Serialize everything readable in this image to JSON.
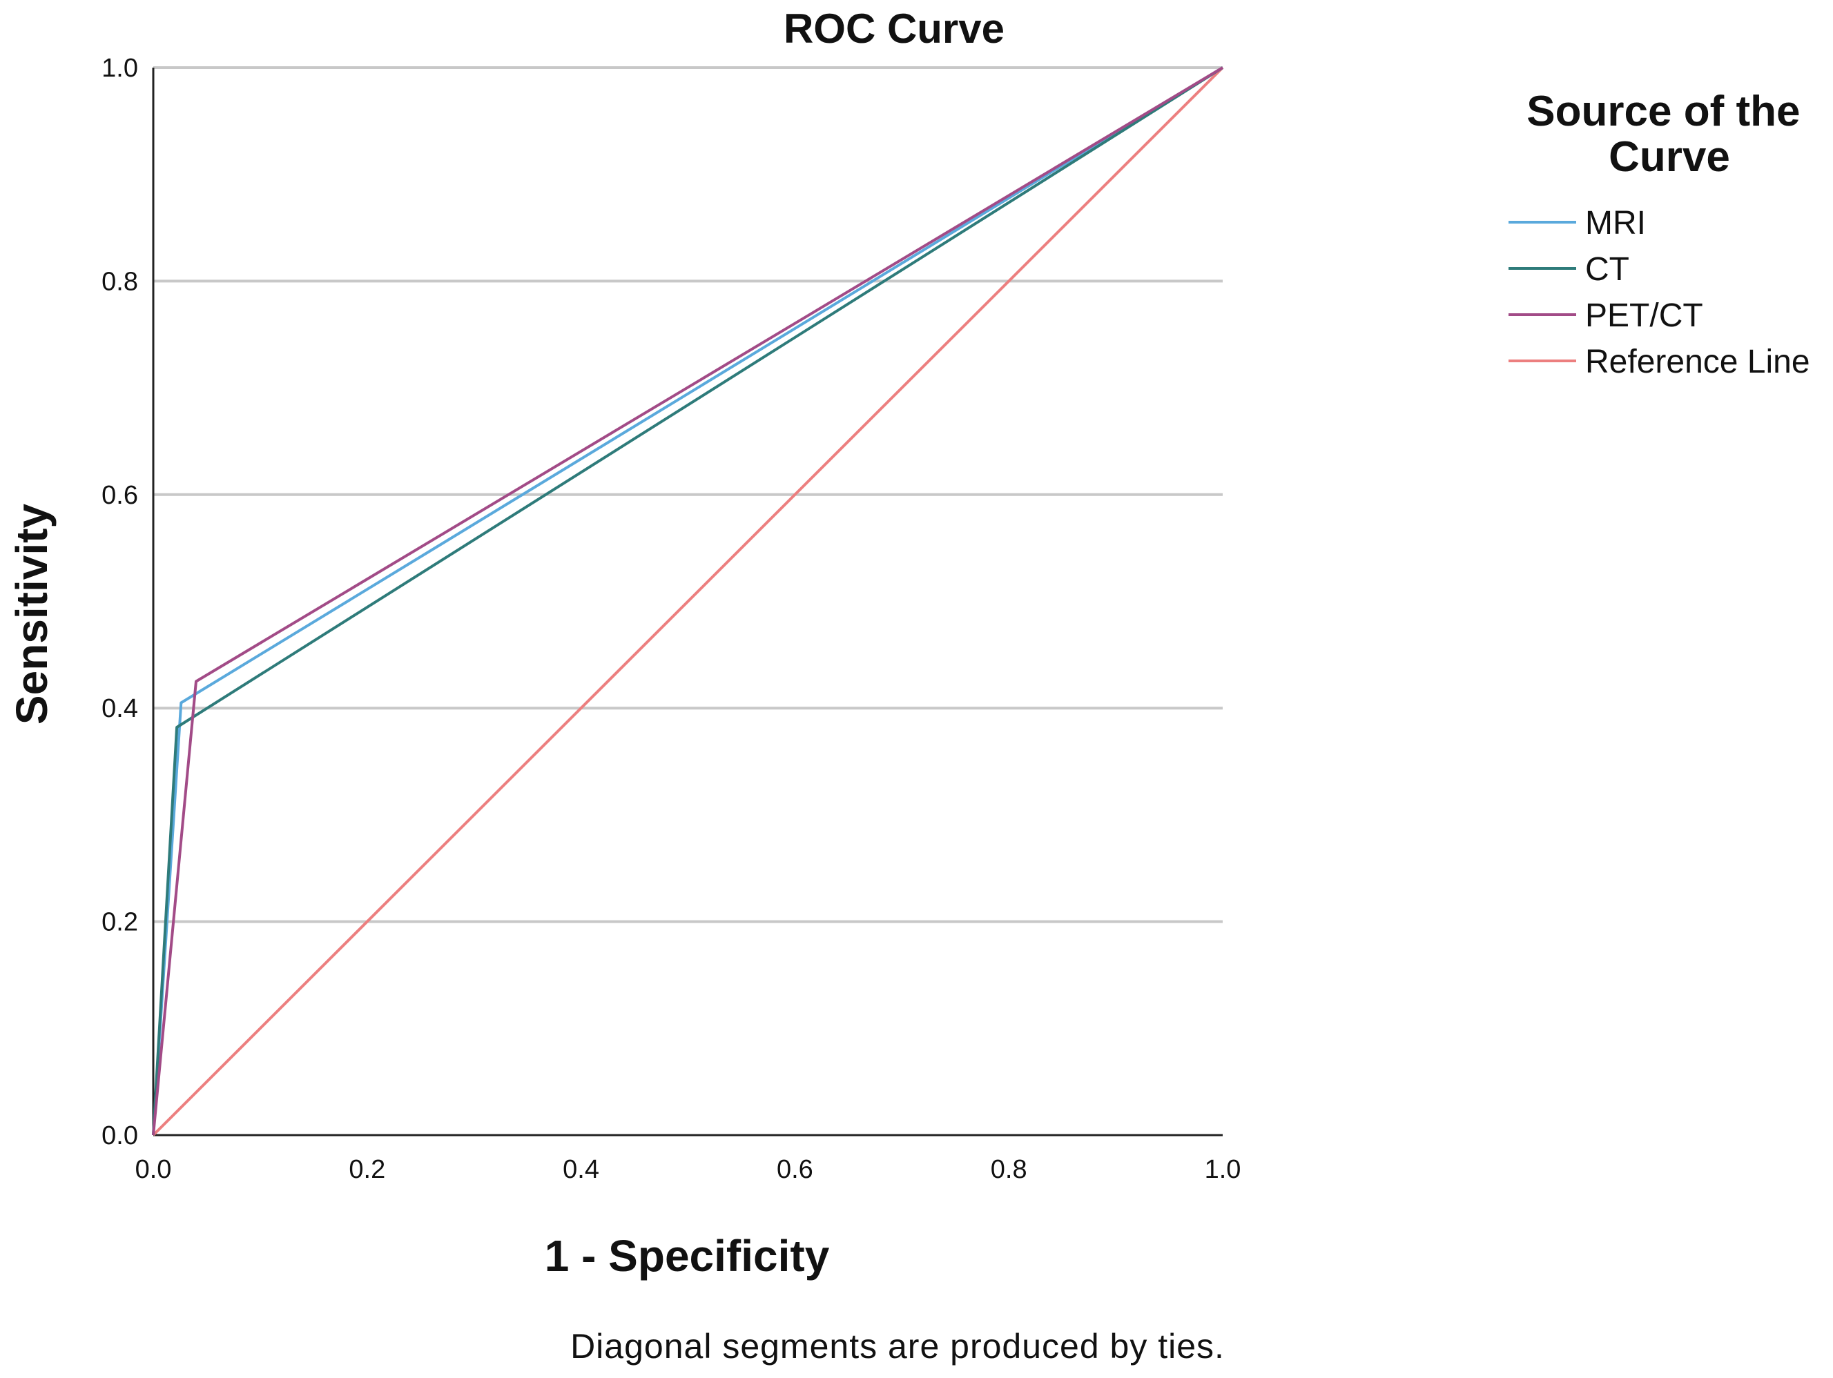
{
  "chart_data": {
    "type": "line",
    "title": "ROC Curve",
    "xlabel": "1 - Specificity",
    "ylabel": "Sensitivity",
    "xlim": [
      0,
      1
    ],
    "ylim": [
      0,
      1
    ],
    "x_ticks": [
      "0.0",
      "0.2",
      "0.4",
      "0.6",
      "0.8",
      "1.0"
    ],
    "y_ticks": [
      "0.0",
      "0.2",
      "0.4",
      "0.6",
      "0.8",
      "1.0"
    ],
    "grid": "horizontal",
    "legend_title": "Source of the Curve",
    "legend_position": "right",
    "footnote": "Diagonal segments are produced by ties.",
    "series": [
      {
        "name": "MRI",
        "color": "#5aa9dc",
        "x": [
          0,
          0.026,
          1
        ],
        "y": [
          0,
          0.405,
          1
        ]
      },
      {
        "name": "CT",
        "color": "#2e7b7a",
        "x": [
          0,
          0.022,
          1
        ],
        "y": [
          0,
          0.382,
          1
        ]
      },
      {
        "name": "PET/CT",
        "color": "#a24b87",
        "x": [
          0,
          0.04,
          1
        ],
        "y": [
          0,
          0.425,
          1
        ]
      },
      {
        "name": "Reference Line",
        "color": "#ec7f7f",
        "x": [
          0,
          1
        ],
        "y": [
          0,
          1
        ]
      }
    ]
  }
}
